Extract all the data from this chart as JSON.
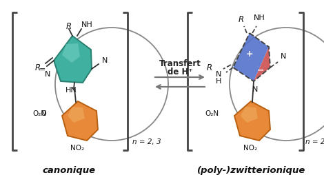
{
  "bg_color": "#ffffff",
  "teal_color": "#40b0a0",
  "teal_edge": "#2a8070",
  "teal_shine": "#80d8cc",
  "orange_color": "#e8893a",
  "orange_dark": "#b86010",
  "orange_shine": "#f0c070",
  "blue_color": "#5572cc",
  "red_color": "#cc5050",
  "dashed_color": "#444444",
  "text_color": "#111111",
  "bracket_color": "#444444",
  "arrow_color": "#777777",
  "bond_color": "#333333",
  "label_left": "canonique",
  "label_right": "(poly-)zwitterionique",
  "arrow_label_line1": "Transfert",
  "arrow_label_line2": "de H⁺",
  "figsize": [
    4.7,
    2.54
  ],
  "dpi": 100
}
